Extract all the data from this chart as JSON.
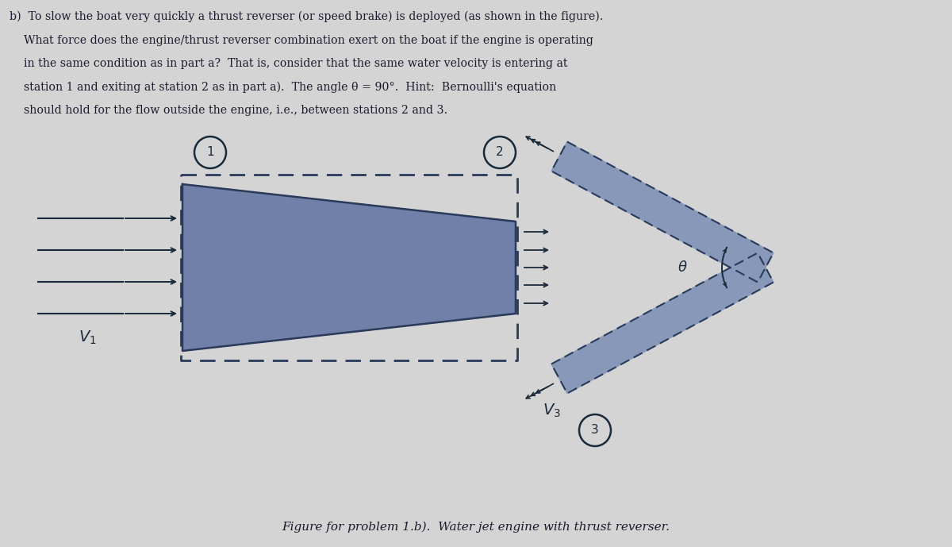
{
  "bg_color": "#d4d4d4",
  "text_color": "#1a1a2e",
  "engine_color": "#7080a8",
  "engine_edge": "#2a3a5a",
  "reverser_color": "#8898b8",
  "dashed_color": "#2a3a5a",
  "arrow_color": "#1a2a3a",
  "caption": "Figure for problem 1.b).  Water jet engine with thrust reverser.",
  "lines": [
    "b)  To slow the boat very quickly a thrust reverser (or speed brake) is deployed (as shown in the figure).",
    "    What force does the engine/thrust reverser combination exert on the boat if the engine is operating",
    "    in the same condition as in part a?  That is, consider that the same water velocity is entering at",
    "    station 1 and exiting at station 2 as in part a).  The angle θ = 90°.  Hint:  Bernoulli's equation",
    "    should hold for the flow outside the engine, i.e., between stations 2 and 3."
  ]
}
